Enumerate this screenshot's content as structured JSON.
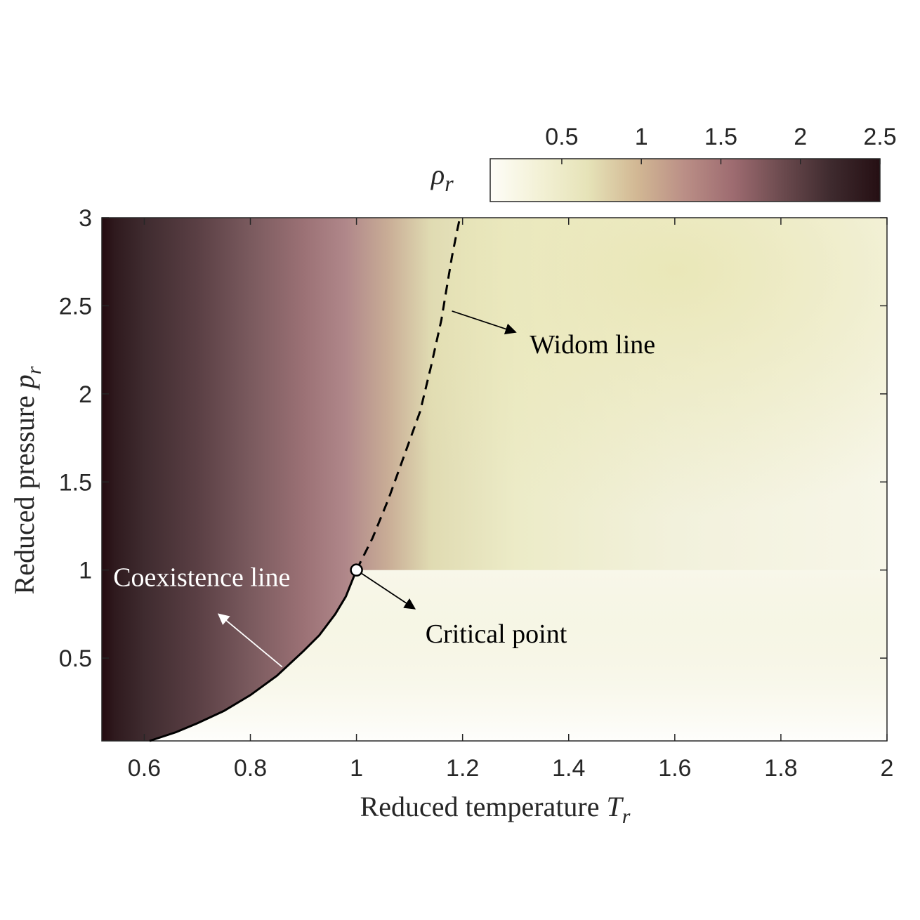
{
  "chart_data": {
    "type": "heatmap",
    "title": "",
    "xlabel": "Reduced temperature",
    "xlabel_symbol": "T",
    "xlabel_subscript": "r",
    "ylabel": "Reduced pressure",
    "ylabel_symbol": "p",
    "ylabel_subscript": "r",
    "xlim": [
      0.52,
      2.0
    ],
    "ylim": [
      0.03,
      3.0
    ],
    "x_ticks": [
      0.6,
      0.8,
      1.0,
      1.2,
      1.4,
      1.6,
      1.8,
      2.0
    ],
    "x_tick_labels": [
      "0.6",
      "0.8",
      "1",
      "1.2",
      "1.4",
      "1.6",
      "1.8",
      "2"
    ],
    "y_ticks": [
      0.5,
      1.0,
      1.5,
      2.0,
      2.5,
      3.0
    ],
    "y_tick_labels": [
      "0.5",
      "1",
      "1.5",
      "2",
      "2.5",
      "3"
    ],
    "colorbar": {
      "label_symbol": "ρ",
      "label_subscript": "r",
      "location": "top",
      "range": [
        0.05,
        2.5
      ],
      "ticks": [
        0.5,
        1.0,
        1.5,
        2.0,
        2.5
      ],
      "tick_labels": [
        "0.5",
        "1",
        "1.5",
        "2",
        "2.5"
      ],
      "colors": [
        "#fefdf8",
        "#f3f1d6",
        "#e6e3b8",
        "#d2b894",
        "#ba8e86",
        "#9d6b70",
        "#6b4a4e",
        "#3e2a2e",
        "#250f13"
      ]
    },
    "coexistence_line": {
      "name": "Coexistence line",
      "style": "solid",
      "T": [
        0.61,
        0.66,
        0.7,
        0.75,
        0.8,
        0.85,
        0.9,
        0.93,
        0.96,
        0.98,
        1.0
      ],
      "p": [
        0.03,
        0.08,
        0.13,
        0.2,
        0.29,
        0.4,
        0.54,
        0.63,
        0.75,
        0.85,
        1.0
      ]
    },
    "widom_line": {
      "name": "Widom line",
      "style": "dashed",
      "T": [
        1.0,
        1.03,
        1.06,
        1.09,
        1.12,
        1.14,
        1.16,
        1.17,
        1.18,
        1.19,
        1.195
      ],
      "p": [
        1.0,
        1.18,
        1.4,
        1.65,
        1.9,
        2.15,
        2.42,
        2.6,
        2.78,
        2.93,
        3.0
      ]
    },
    "critical_point": {
      "name": "Critical point",
      "T": 1.0,
      "p": 1.0
    },
    "annotations": [
      {
        "text": "Widom line",
        "color": "#000000",
        "tip": [
          1.3,
          2.35
        ],
        "tail": [
          1.18,
          2.47
        ]
      },
      {
        "text": "Critical point",
        "color": "#000000",
        "tip": [
          1.11,
          0.78
        ],
        "tail": [
          1.01,
          0.98
        ]
      },
      {
        "text": "Coexistence line",
        "color": "#ffffff",
        "tip": [
          0.74,
          0.75
        ],
        "tail": [
          0.86,
          0.45
        ]
      }
    ]
  }
}
